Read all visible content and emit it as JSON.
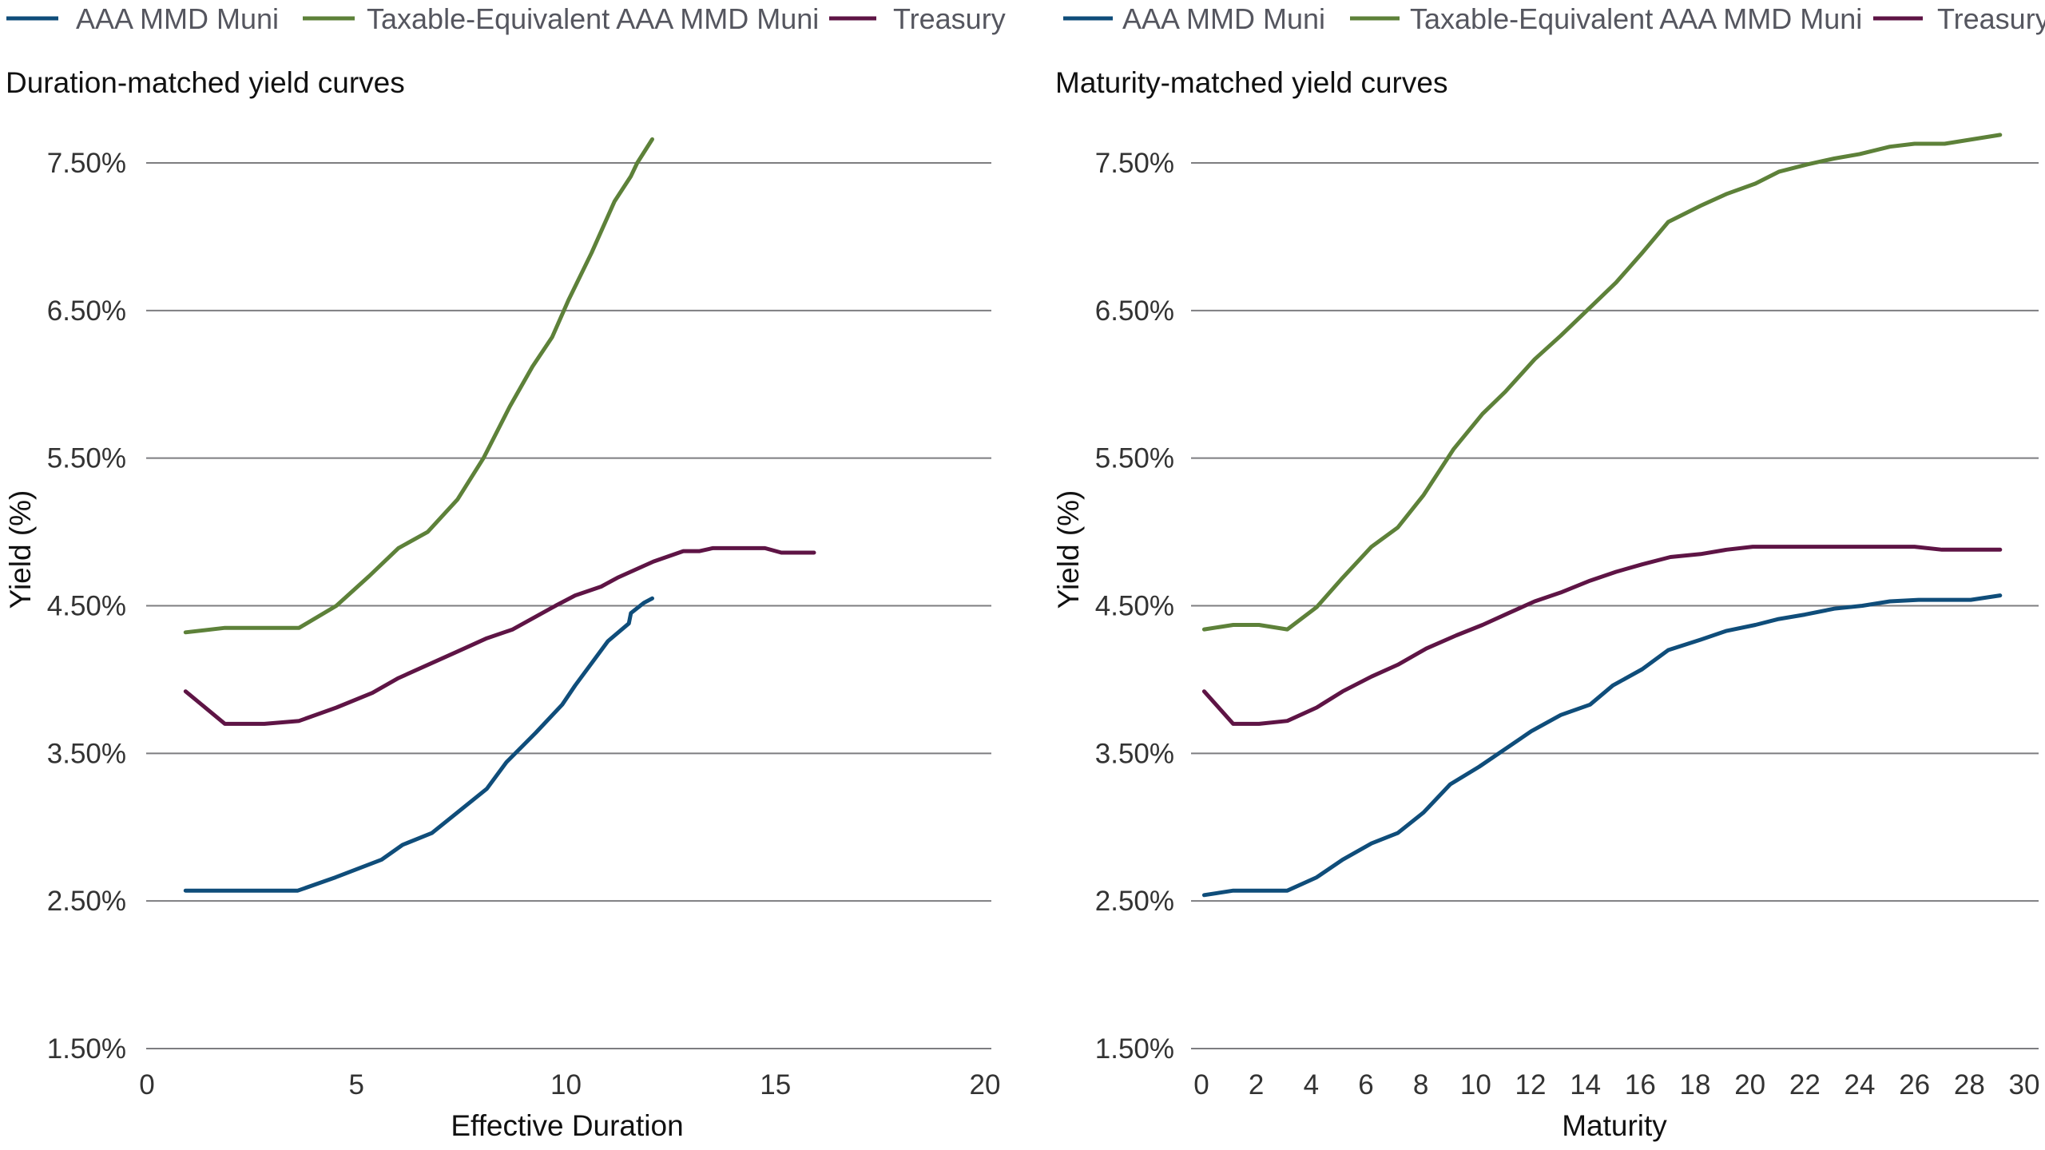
{
  "chart_data": [
    {
      "type": "line",
      "title": "Duration-matched yield curves",
      "xlabel": "Effective Duration",
      "ylabel": "Yield (%)",
      "xlim": [
        0,
        20
      ],
      "ylim": [
        1.5,
        7.5
      ],
      "xticks": [
        0,
        5,
        10,
        15,
        20
      ],
      "xtick_labels": [
        "0",
        "5",
        "10",
        "15",
        "20"
      ],
      "yticks": [
        1.5,
        2.5,
        3.5,
        4.5,
        5.5,
        6.5,
        7.5
      ],
      "ytick_labels": [
        "1.50%",
        "2.50%",
        "3.50%",
        "4.50%",
        "5.50%",
        "6.50%",
        "7.50%"
      ],
      "grid": "horizontal",
      "legend": "top",
      "series": [
        {
          "name": "AAA MMD Muni",
          "color": "#0f4d7a",
          "x": [
            0.92,
            3.6,
            4.5,
            5.6,
            6.1,
            6.8,
            8.11,
            8.58,
            9.28,
            9.91,
            10.22,
            11.0,
            11.5,
            11.55,
            11.86,
            12.06
          ],
          "y": [
            2.57,
            2.57,
            2.66,
            2.78,
            2.88,
            2.96,
            3.26,
            3.44,
            3.64,
            3.83,
            3.96,
            4.26,
            4.38,
            4.45,
            4.52,
            4.55
          ]
        },
        {
          "name": "Taxable-Equivalent AAA MMD Muni",
          "color": "#5d8139",
          "x": [
            0.92,
            1.86,
            3.63,
            4.52,
            5.3,
            6.0,
            6.7,
            7.41,
            8.03,
            8.66,
            9.2,
            9.67,
            10.06,
            10.61,
            11.16,
            11.55,
            11.7,
            12.06
          ],
          "y": [
            4.32,
            4.35,
            4.35,
            4.5,
            4.7,
            4.89,
            5.0,
            5.22,
            5.5,
            5.85,
            6.12,
            6.32,
            6.57,
            6.89,
            7.24,
            7.41,
            7.5,
            7.66
          ]
        },
        {
          "name": "Treasury",
          "color": "#5e1445",
          "x": [
            0.92,
            1.86,
            2.8,
            3.63,
            4.52,
            5.38,
            6.0,
            7.41,
            8.11,
            8.73,
            9.75,
            10.22,
            10.84,
            11.23,
            12.09,
            12.8,
            13.19,
            13.5,
            14.75,
            15.14,
            15.92
          ],
          "y": [
            3.92,
            3.7,
            3.7,
            3.72,
            3.81,
            3.91,
            4.01,
            4.19,
            4.28,
            4.34,
            4.5,
            4.57,
            4.63,
            4.69,
            4.8,
            4.87,
            4.87,
            4.89,
            4.89,
            4.86,
            4.86
          ]
        }
      ]
    },
    {
      "type": "line",
      "title": "Maturity-matched yield curves",
      "xlabel": "Maturity",
      "ylabel": "Yield (%)",
      "xlim": [
        0,
        30
      ],
      "ylim": [
        1.5,
        7.5
      ],
      "xticks": [
        0,
        2,
        4,
        6,
        8,
        10,
        12,
        14,
        16,
        18,
        20,
        22,
        24,
        26,
        28,
        30
      ],
      "xtick_labels": [
        "0",
        "2",
        "4",
        "6",
        "8",
        "10",
        "12",
        "14",
        "16",
        "18",
        "20",
        "22",
        "24",
        "26",
        "28",
        "30"
      ],
      "yticks": [
        1.5,
        2.5,
        3.5,
        4.5,
        5.5,
        6.5,
        7.5
      ],
      "ytick_labels": [
        "1.50%",
        "2.50%",
        "3.50%",
        "4.50%",
        "5.50%",
        "6.50%",
        "7.50%"
      ],
      "grid": "horizontal",
      "legend": "top",
      "series": [
        {
          "name": "AAA MMD Muni",
          "color": "#0f4d7a",
          "x": [
            0.1,
            1.16,
            3.13,
            4.2,
            5.15,
            6.2,
            7.16,
            8.1,
            9.07,
            10.13,
            11.08,
            12.03,
            13.1,
            14.17,
            15.0,
            16.07,
            17.02,
            18.2,
            19.15,
            20.2,
            21.05,
            22.0,
            23.07,
            24.1,
            25.1,
            26.15,
            28.05,
            29.12
          ],
          "y": [
            2.54,
            2.57,
            2.57,
            2.66,
            2.78,
            2.89,
            2.96,
            3.1,
            3.29,
            3.41,
            3.53,
            3.65,
            3.76,
            3.83,
            3.96,
            4.07,
            4.2,
            4.27,
            4.33,
            4.37,
            4.41,
            4.44,
            4.48,
            4.5,
            4.53,
            4.54,
            4.54,
            4.57
          ]
        },
        {
          "name": "Taxable-Equivalent AAA MMD Muni",
          "color": "#5d8139",
          "x": [
            0.1,
            1.16,
            2.1,
            3.13,
            4.2,
            5.15,
            6.2,
            7.16,
            8.1,
            9.19,
            10.25,
            11.08,
            12.15,
            13.1,
            14.17,
            15.12,
            16.07,
            17.02,
            18.2,
            19.15,
            20.2,
            21.05,
            22.1,
            23.07,
            24.0,
            25.1,
            26.0,
            27.1,
            29.12
          ],
          "y": [
            4.34,
            4.37,
            4.37,
            4.34,
            4.49,
            4.69,
            4.9,
            5.03,
            5.25,
            5.56,
            5.8,
            5.95,
            6.17,
            6.33,
            6.52,
            6.69,
            6.89,
            7.1,
            7.21,
            7.29,
            7.36,
            7.44,
            7.49,
            7.53,
            7.56,
            7.61,
            7.63,
            7.63,
            7.69
          ]
        },
        {
          "name": "Treasury",
          "color": "#5e1445",
          "x": [
            0.1,
            1.16,
            2.1,
            3.13,
            4.2,
            5.15,
            6.2,
            7.16,
            8.2,
            9.3,
            10.25,
            11.2,
            12.15,
            13.1,
            14.17,
            15.12,
            16.07,
            17.1,
            18.2,
            19.15,
            20.1,
            26.0,
            27.0,
            29.12
          ],
          "y": [
            3.92,
            3.7,
            3.7,
            3.72,
            3.81,
            3.92,
            4.02,
            4.1,
            4.21,
            4.3,
            4.37,
            4.45,
            4.53,
            4.59,
            4.67,
            4.73,
            4.78,
            4.83,
            4.85,
            4.88,
            4.9,
            4.9,
            4.88,
            4.88
          ]
        }
      ]
    }
  ]
}
